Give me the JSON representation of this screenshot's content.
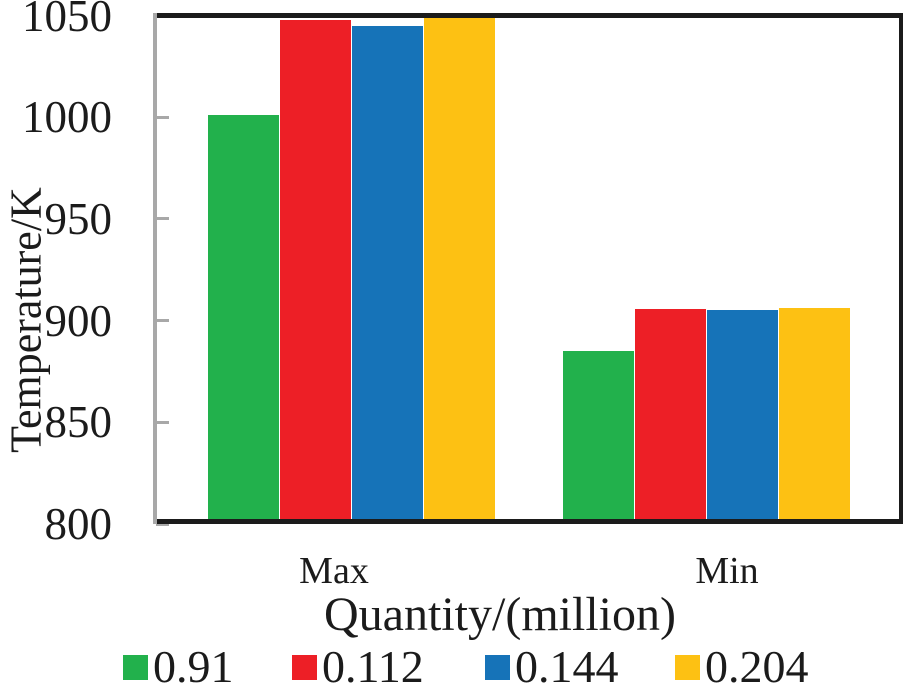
{
  "chart_data": {
    "type": "bar",
    "title": "",
    "categories": [
      "Max",
      "Min"
    ],
    "series": [
      {
        "name": "0.91",
        "color": "#22B14C",
        "values": [
          1001,
          885
        ]
      },
      {
        "name": "0.112",
        "color": "#ED1F26",
        "values": [
          1048,
          905.5
        ]
      },
      {
        "name": "0.144",
        "color": "#1673B8",
        "values": [
          1045,
          905
        ]
      },
      {
        "name": "0.204",
        "color": "#FDC113",
        "values": [
          1049,
          906
        ]
      }
    ],
    "xlabel": "Quantity/(million)",
    "ylabel": "Temperature/K",
    "ylim": [
      800,
      1050
    ],
    "yticks": [
      800,
      850,
      900,
      950,
      1000,
      1050
    ],
    "grid": false,
    "legend_position": "bottom",
    "colors": {
      "frame": "#1b1b1b",
      "left_axis": "#a8a8a8",
      "tick": "#a8a8a8",
      "text": "#1b1b1b",
      "background": "#ffffff"
    }
  }
}
